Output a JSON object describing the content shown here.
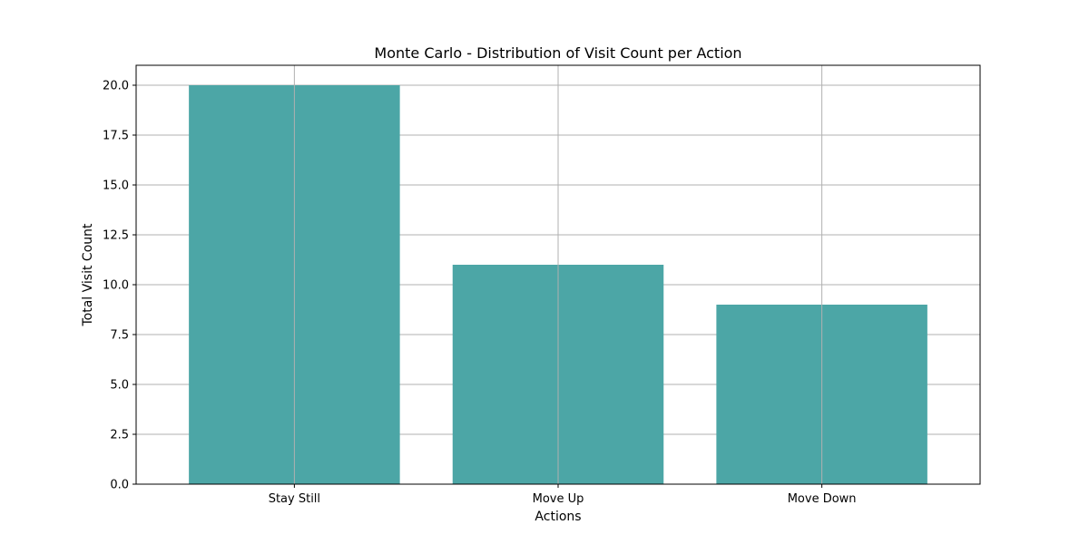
{
  "chart_data": {
    "type": "bar",
    "title": "Monte Carlo - Distribution of Visit Count per Action",
    "xlabel": "Actions",
    "ylabel": "Total Visit Count",
    "categories": [
      "Stay Still",
      "Move Up",
      "Move Down"
    ],
    "values": [
      20,
      11,
      9
    ],
    "ylim": [
      0,
      21
    ],
    "yticks": [
      0.0,
      2.5,
      5.0,
      7.5,
      10.0,
      12.5,
      15.0,
      17.5,
      20.0
    ],
    "ytick_labels": [
      "0.0",
      "2.5",
      "5.0",
      "7.5",
      "10.0",
      "12.5",
      "15.0",
      "17.5",
      "20.0"
    ],
    "grid": true,
    "legend": "none",
    "colors": {
      "bar": "#4ca6a6",
      "grid": "#b0b0b0",
      "axis": "#000000"
    }
  }
}
